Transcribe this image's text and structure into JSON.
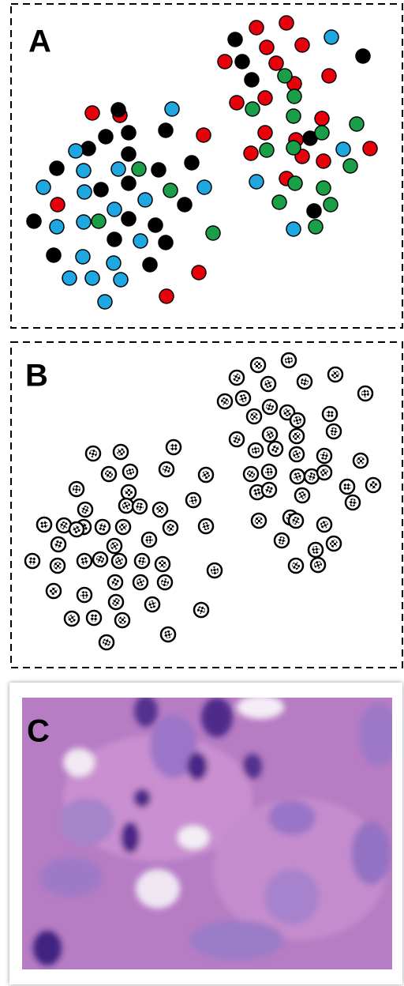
{
  "chart_data": [
    {
      "type": "scatter",
      "title": "A",
      "xlim": [
        14,
        512
      ],
      "ylim": [
        415,
        5
      ],
      "series": [
        {
          "color": "#e8000b",
          "x": [
            325,
            363,
            338,
            383,
            285,
            350,
            417,
            373,
            336,
            300,
            408,
            258,
            336,
            375,
            318,
            383,
            410,
            469,
            363,
            73,
            252,
            211,
            117,
            152
          ],
          "y": [
            35,
            29,
            60,
            57,
            78,
            80,
            96,
            106,
            124,
            130,
            150,
            171,
            168,
            177,
            194,
            198,
            204,
            188,
            226,
            259,
            345,
            375,
            143,
            146
          ]
        },
        {
          "color": "#000000",
          "x": [
            298,
            307,
            460,
            319,
            150,
            163,
            134,
            112,
            210,
            163,
            72,
            201,
            243,
            128,
            163,
            234,
            43,
            163,
            197,
            145,
            210,
            68,
            190,
            393,
            398
          ],
          "y": [
            50,
            78,
            71,
            101,
            139,
            168,
            173,
            188,
            165,
            195,
            213,
            215,
            206,
            240,
            232,
            259,
            280,
            277,
            285,
            303,
            307,
            323,
            335,
            175,
            267
          ]
        },
        {
          "color": "#1a9e48",
          "x": [
            361,
            373,
            320,
            372,
            452,
            408,
            338,
            372,
            444,
            176,
            216,
            374,
            410,
            354,
            419,
            125,
            270,
            400
          ],
          "y": [
            96,
            122,
            138,
            147,
            157,
            168,
            190,
            187,
            210,
            214,
            241,
            232,
            238,
            256,
            259,
            280,
            295,
            287
          ]
        },
        {
          "color": "#1ea7e1",
          "x": [
            420,
            218,
            96,
            106,
            150,
            55,
            107,
            259,
            325,
            145,
            184,
            106,
            72,
            178,
            105,
            144,
            88,
            117,
            153,
            133,
            372,
            435
          ],
          "y": [
            47,
            138,
            191,
            216,
            214,
            237,
            243,
            237,
            230,
            265,
            253,
            281,
            287,
            305,
            325,
            333,
            352,
            352,
            354,
            382,
            290,
            189
          ]
        }
      ]
    },
    {
      "type": "scatter",
      "title": "B",
      "xlim": [
        14,
        512
      ],
      "ylim": [
        845,
        433
      ],
      "marker": "checker",
      "series": [
        {
          "color": "#000000",
          "x": [
            327,
            366,
            300,
            340,
            386,
            425,
            463,
            285,
            308,
            342,
            364,
            418,
            322,
            377,
            300,
            342,
            423,
            376,
            324,
            349,
            376,
            411,
            457,
            341,
            318,
            377,
            395,
            411,
            440,
            473,
            326,
            341,
            383,
            447,
            328,
            368,
            375,
            411,
            357,
            423,
            400,
            375,
            403,
            118,
            153,
            220,
            138,
            165,
            211,
            261,
            97,
            163,
            245,
            108,
            160,
            177,
            203,
            56,
            81,
            106,
            130,
            156,
            189,
            216,
            261,
            74,
            145,
            41,
            73,
            107,
            127,
            151,
            180,
            206,
            272,
            146,
            178,
            209,
            68,
            107,
            147,
            193,
            255,
            91,
            119,
            155,
            213,
            135,
            97
          ],
          "y": [
            462,
            456,
            478,
            486,
            483,
            474,
            498,
            508,
            504,
            515,
            522,
            524,
            527,
            532,
            556,
            550,
            546,
            552,
            570,
            568,
            575,
            577,
            583,
            597,
            600,
            603,
            603,
            598,
            616,
            614,
            623,
            620,
            627,
            636,
            659,
            655,
            659,
            664,
            684,
            688,
            696,
            716,
            715,
            574,
            572,
            566,
            600,
            597,
            594,
            601,
            619,
            623,
            633,
            645,
            640,
            641,
            645,
            664,
            665,
            667,
            667,
            667,
            683,
            668,
            666,
            689,
            691,
            710,
            716,
            710,
            708,
            710,
            710,
            714,
            722,
            737,
            737,
            737,
            748,
            753,
            762,
            765,
            772,
            783,
            782,
            785,
            803,
            813,
            670
          ]
        }
      ]
    }
  ],
  "image": {
    "label": "C"
  }
}
